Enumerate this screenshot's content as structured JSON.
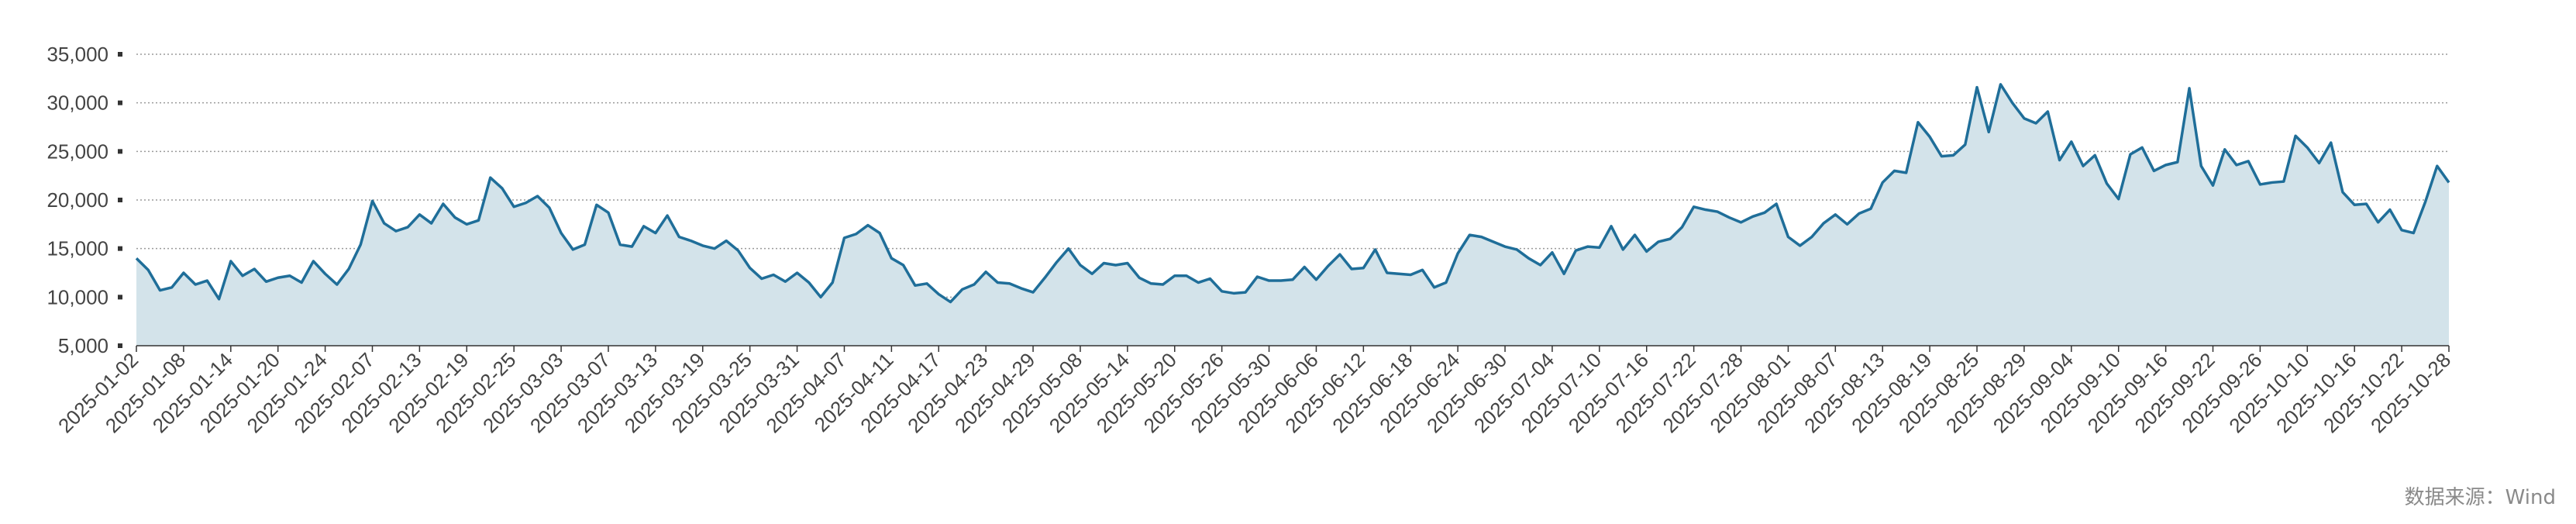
{
  "source_note": "数据来源：Wind",
  "colors": {
    "line": "#1f6e99",
    "area": "#d3e3ea",
    "grid": "#9a9a9a",
    "axis": "#333333",
    "tick_text": "#444444",
    "source_text": "#8a8a8a"
  },
  "chart_data": {
    "type": "area",
    "title": "",
    "xlabel": "",
    "ylabel": "",
    "ylim": [
      5000,
      35000
    ],
    "yticks": [
      5000,
      10000,
      15000,
      20000,
      25000,
      30000,
      35000
    ],
    "ytick_labels": [
      "5,000",
      "10,000",
      "15,000",
      "20,000",
      "25,000",
      "30,000",
      "35,000"
    ],
    "grid": "horizontal dotted",
    "xtick_labels": [
      "2025-01-02",
      "2025-01-08",
      "2025-01-14",
      "2025-01-20",
      "2025-01-24",
      "2025-02-07",
      "2025-02-13",
      "2025-02-19",
      "2025-02-25",
      "2025-03-03",
      "2025-03-07",
      "2025-03-13",
      "2025-03-19",
      "2025-03-25",
      "2025-03-31",
      "2025-04-07",
      "2025-04-11",
      "2025-04-17",
      "2025-04-23",
      "2025-04-29",
      "2025-05-08",
      "2025-05-14",
      "2025-05-20",
      "2025-05-26",
      "2025-05-30",
      "2025-06-06",
      "2025-06-12",
      "2025-06-18",
      "2025-06-24",
      "2025-06-30",
      "2025-07-04",
      "2025-07-10",
      "2025-07-16",
      "2025-07-22",
      "2025-07-28",
      "2025-08-01",
      "2025-08-07",
      "2025-08-13",
      "2025-08-19",
      "2025-08-25",
      "2025-08-29",
      "2025-09-04",
      "2025-09-10",
      "2025-09-16",
      "2025-09-22",
      "2025-09-26",
      "2025-10-10",
      "2025-10-16",
      "2025-10-22",
      "2025-10-28"
    ],
    "series": [
      {
        "values": [
          14000,
          12800,
          10700,
          11000,
          12500,
          11300,
          11700,
          9800,
          13700,
          12200,
          12900,
          11600,
          12000,
          12200,
          11500,
          13700,
          12400,
          11300,
          12900,
          15400,
          19900,
          17600,
          16800,
          17200,
          18500,
          17600,
          19600,
          18200,
          17500,
          17900,
          22300,
          21200,
          19300,
          19700,
          20400,
          19200,
          16600,
          14900,
          15400,
          19500,
          18700,
          15400,
          15200,
          17300,
          16600,
          18400,
          16200,
          15800,
          15300,
          15000,
          15800,
          14800,
          13000,
          11900,
          12300,
          11600,
          12500,
          11500,
          10000,
          11500,
          16100,
          16500,
          17400,
          16600,
          14000,
          13300,
          11200,
          11400,
          10300,
          9500,
          10800,
          11300,
          12600,
          11500,
          11400,
          10900,
          10500,
          12000,
          13600,
          15000,
          13300,
          12400,
          13500,
          13300,
          13500,
          12000,
          11400,
          11300,
          12200,
          12200,
          11500,
          11900,
          10600,
          10400,
          10500,
          12100,
          11700,
          11700,
          11800,
          13100,
          11800,
          13200,
          14400,
          12900,
          13000,
          14900,
          12500,
          12400,
          12300,
          12800,
          11000,
          11500,
          14500,
          16400,
          16200,
          15700,
          15200,
          14900,
          14000,
          13300,
          14600,
          12400,
          14800,
          15200,
          15100,
          17300,
          14900,
          16400,
          14700,
          15700,
          16000,
          17200,
          19300,
          19000,
          18800,
          18200,
          17700,
          18300,
          18700,
          19600,
          16200,
          15300,
          16200,
          17600,
          18500,
          17500,
          18600,
          19100,
          21800,
          23000,
          22800,
          28000,
          26500,
          24500,
          24600,
          25700,
          31600,
          27000,
          31900,
          30000,
          28400,
          27900,
          29100,
          24100,
          26000,
          23500,
          24600,
          21700,
          20100,
          24700,
          25400,
          23000,
          23600,
          23900,
          31500,
          23500,
          21500,
          25200,
          23600,
          24000,
          21600,
          21800,
          21900,
          26600,
          25400,
          23800,
          25900,
          20800,
          19500,
          19600,
          17700,
          19000,
          16900,
          16600,
          19800,
          23500,
          21800
        ]
      }
    ]
  }
}
